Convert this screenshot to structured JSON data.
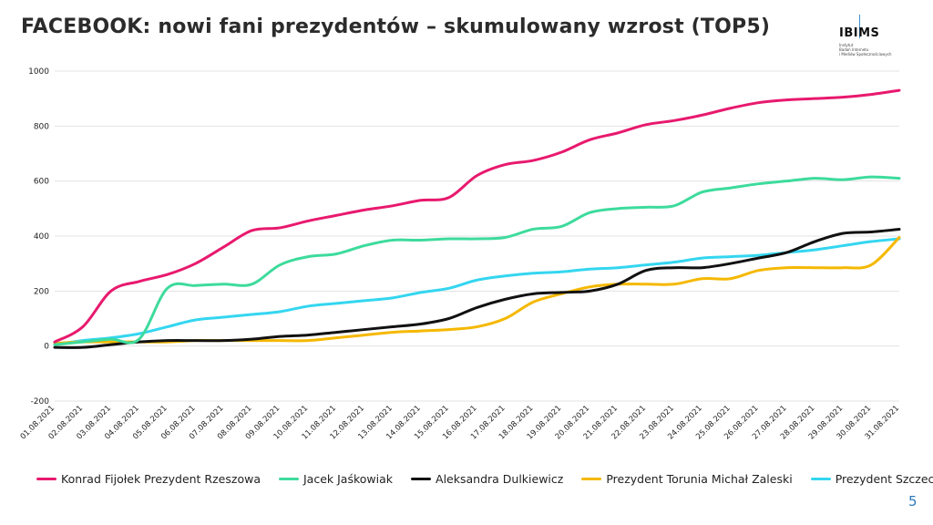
{
  "title": "FACEBOOK: nowi fani prezydentów – skumulowany wzrost (TOP5)",
  "logo": {
    "main": "IBIMS",
    "sub": [
      "Instytut",
      "Badań Internetu",
      "i Mediów Społecznościowych"
    ]
  },
  "page_number": "5",
  "chart_data": {
    "type": "line",
    "title": "FACEBOOK: nowi fani prezydentów – skumulowany wzrost (TOP5)",
    "xlabel": "",
    "ylabel": "",
    "ylim": [
      -200,
      1000
    ],
    "yticks": [
      -200,
      0,
      200,
      400,
      600,
      800,
      1000
    ],
    "grid": "horizontal",
    "legend": "bottom",
    "x": [
      "01.08.2021",
      "02.08.2021",
      "03.08.2021",
      "04.08.2021",
      "05.08.2021",
      "06.08.2021",
      "07.08.2021",
      "08.08.2021",
      "09.08.2021",
      "10.08.2021",
      "11.08.2021",
      "12.08.2021",
      "13.08.2021",
      "14.08.2021",
      "15.08.2021",
      "16.08.2021",
      "17.08.2021",
      "18.08.2021",
      "19.08.2021",
      "20.08.2021",
      "21.08.2021",
      "22.08.2021",
      "23.08.2021",
      "24.08.2021",
      "25.08.2021",
      "26.08.2021",
      "27.08.2021",
      "28.08.2021",
      "29.08.2021",
      "30.08.2021",
      "31.08.2021"
    ],
    "series": [
      {
        "name": "Konrad Fijołek Prezydent Rzeszowa",
        "color": "#e8196e",
        "values": [
          15,
          70,
          200,
          235,
          260,
          300,
          360,
          420,
          430,
          455,
          475,
          495,
          510,
          530,
          540,
          620,
          660,
          675,
          705,
          750,
          775,
          805,
          820,
          840,
          865,
          885,
          895,
          900,
          905,
          915,
          930
        ]
      },
      {
        "name": "Jacek Jaśkowiak",
        "color": "#3ddb9c",
        "values": [
          5,
          15,
          25,
          25,
          210,
          220,
          225,
          225,
          295,
          325,
          335,
          365,
          385,
          385,
          390,
          390,
          395,
          425,
          435,
          485,
          500,
          505,
          510,
          560,
          575,
          590,
          600,
          610,
          605,
          615,
          610
        ]
      },
      {
        "name": "Aleksandra Dulkiewicz",
        "color": "#111111",
        "values": [
          -5,
          -5,
          5,
          15,
          20,
          20,
          20,
          25,
          35,
          40,
          50,
          60,
          70,
          80,
          100,
          140,
          170,
          190,
          195,
          200,
          225,
          275,
          285,
          285,
          300,
          320,
          340,
          380,
          410,
          415,
          425
        ]
      },
      {
        "name": "Prezydent Torunia Michał Zaleski",
        "color": "#f5b800",
        "values": [
          10,
          15,
          15,
          15,
          15,
          20,
          20,
          20,
          20,
          20,
          30,
          40,
          50,
          55,
          60,
          70,
          100,
          160,
          190,
          215,
          225,
          225,
          225,
          245,
          245,
          275,
          285,
          285,
          285,
          295,
          395
        ]
      },
      {
        "name": "Prezydent Szczecina",
        "color": "#34d6f0",
        "values": [
          5,
          20,
          30,
          45,
          70,
          95,
          105,
          115,
          125,
          145,
          155,
          165,
          175,
          195,
          210,
          240,
          255,
          265,
          270,
          280,
          285,
          295,
          305,
          320,
          325,
          330,
          340,
          350,
          365,
          380,
          390
        ]
      }
    ]
  }
}
